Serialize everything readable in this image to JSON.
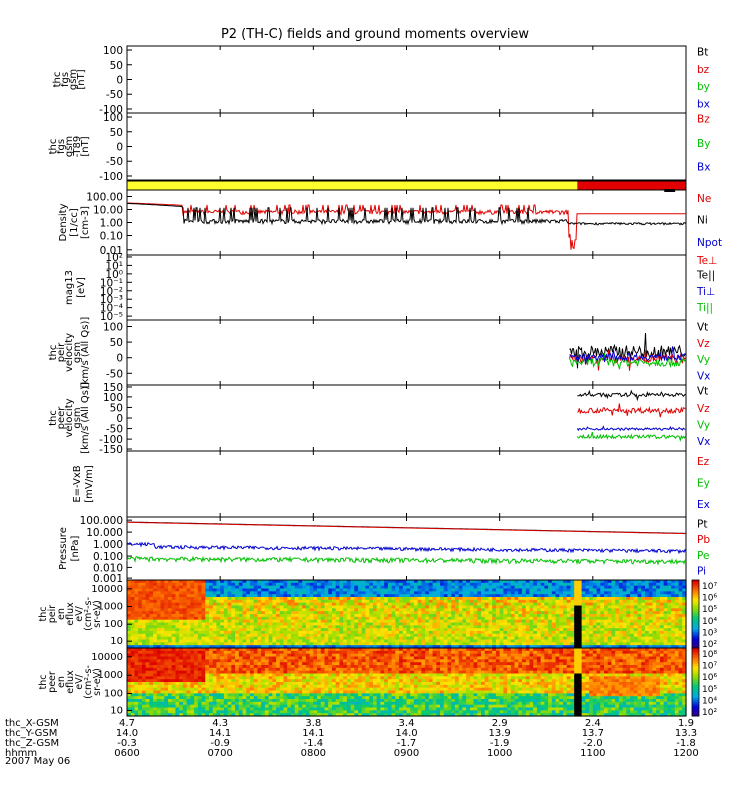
{
  "title": "P2 (TH-C) fields and ground moments overview",
  "colors": {
    "black": "#000000",
    "red": "#e00000",
    "green": "#00c000",
    "blue": "#0000d0",
    "yellow": "#ffff30",
    "axis": "#000000"
  },
  "time_axis": {
    "ticks": [
      "0600",
      "0700",
      "0800",
      "0900",
      "1000",
      "1100",
      "1200"
    ],
    "rows": [
      {
        "label": "thc_X-GSM",
        "values": [
          "4.7",
          "4.3",
          "3.8",
          "3.4",
          "2.9",
          "2.4",
          "1.9"
        ]
      },
      {
        "label": "thc_Y-GSM",
        "values": [
          "14.0",
          "14.1",
          "14.1",
          "14.0",
          "13.9",
          "13.7",
          "13.3"
        ]
      },
      {
        "label": "thc_Z-GSM",
        "values": [
          "-0.3",
          "-0.9",
          "-1.4",
          "-1.7",
          "-1.9",
          "-2.0",
          "-1.8"
        ]
      },
      {
        "label": "hhmm",
        "values": [
          "0600",
          "0700",
          "0800",
          "0900",
          "1000",
          "1100",
          "1200"
        ]
      }
    ],
    "date": "2007 May 06"
  },
  "chart_data": [
    {
      "id": "fgs_gsm",
      "type": "line",
      "ylabel": [
        "thc",
        "fgs",
        "gsm",
        "[nT]"
      ],
      "yticks": [
        "100",
        "50",
        "0",
        "-50",
        "-100"
      ],
      "ylim": [
        -100,
        100
      ],
      "legend": [
        {
          "text": "Bt",
          "color": "black"
        },
        {
          "text": "bz",
          "color": "red"
        },
        {
          "text": "by",
          "color": "green"
        },
        {
          "text": "bx",
          "color": "blue"
        }
      ],
      "series": []
    },
    {
      "id": "fgs_gsm_t89",
      "type": "line",
      "ylabel": [
        "thc",
        "fgs",
        "gsm",
        "-T89",
        "[nT]"
      ],
      "yticks": [
        "100",
        "50",
        "0",
        "-50",
        "-100"
      ],
      "ylim": [
        -100,
        100
      ],
      "legend": [
        {
          "text": "Bz",
          "color": "red"
        },
        {
          "text": "By",
          "color": "green"
        },
        {
          "text": "Bx",
          "color": "blue"
        }
      ],
      "series": []
    },
    {
      "id": "mode_bar",
      "type": "bar",
      "segments": [
        {
          "from": "0600",
          "to": "1050",
          "color": "yellow"
        },
        {
          "from": "1050",
          "to": "1200",
          "color": "red"
        }
      ],
      "marks": [
        {
          "from": "1146",
          "to": "1153",
          "color": "black"
        }
      ]
    },
    {
      "id": "density",
      "type": "line",
      "scale": "log",
      "ylabel": [
        "Density",
        "[1/cc]",
        "[cm-3]"
      ],
      "yticks": [
        "100.00",
        "10.00",
        "1.00",
        "0.10",
        "0.01"
      ],
      "ylim": [
        0.01,
        100
      ],
      "legend": [
        {
          "text": "Ne",
          "color": "red"
        },
        {
          "text": "Ni",
          "color": "black"
        },
        {
          "text": "Npot",
          "color": "blue"
        }
      ],
      "series": [
        {
          "name": "Ne",
          "color": "red",
          "base": 4.5,
          "start": 16,
          "spikes": true
        },
        {
          "name": "Ni",
          "color": "black",
          "base": 1.2,
          "start": 15,
          "spikes": true
        }
      ]
    },
    {
      "id": "temperature",
      "type": "line",
      "scale": "log",
      "ylabel": [
        "mag13",
        "[eV]"
      ],
      "yticks": [
        "10²",
        "10¹",
        "10⁰",
        "10⁻¹",
        "10⁻²",
        "10⁻³",
        "10⁻⁴",
        "10⁻⁵"
      ],
      "legend": [
        {
          "text": "Te⊥",
          "color": "red"
        },
        {
          "text": "Te||",
          "color": "black"
        },
        {
          "text": "Ti⊥",
          "color": "blue"
        },
        {
          "text": "Ti||",
          "color": "green"
        }
      ],
      "series": []
    },
    {
      "id": "peir_velocity",
      "type": "line",
      "ylabel": [
        "thc",
        "peir",
        "velocity",
        "gsm",
        "[km/s (All Qs)]"
      ],
      "yticks": [
        "100",
        "50",
        "0",
        "-50"
      ],
      "ylim": [
        -75,
        110
      ],
      "legend": [
        {
          "text": "Vt",
          "color": "black"
        },
        {
          "text": "Vz",
          "color": "red"
        },
        {
          "text": "Vy",
          "color": "green"
        },
        {
          "text": "Vx",
          "color": "blue"
        }
      ],
      "series": [
        {
          "name": "Vt",
          "color": "black",
          "start_hhmm": "1045",
          "base": 20,
          "noise": 18
        },
        {
          "name": "Vz",
          "color": "red",
          "start_hhmm": "1045",
          "base": 0,
          "noise": 12
        },
        {
          "name": "Vy",
          "color": "green",
          "start_hhmm": "1045",
          "base": -10,
          "noise": 12
        },
        {
          "name": "Vx",
          "color": "blue",
          "start_hhmm": "1045",
          "base": 5,
          "noise": 10
        }
      ]
    },
    {
      "id": "peer_velocity",
      "type": "line",
      "ylabel": [
        "thc",
        "peer",
        "velocity",
        "gsm",
        "[km/s (All Qs)]"
      ],
      "yticks": [
        "150",
        "100",
        "50",
        "0",
        "-50",
        "-100",
        "-150"
      ],
      "ylim": [
        -150,
        150
      ],
      "legend": [
        {
          "text": "Vt",
          "color": "black"
        },
        {
          "text": "Vz",
          "color": "red"
        },
        {
          "text": "Vy",
          "color": "green"
        },
        {
          "text": "Vx",
          "color": "blue"
        }
      ],
      "series": [
        {
          "name": "Vt",
          "color": "black",
          "start_hhmm": "1050",
          "base": 105,
          "noise": 8
        },
        {
          "name": "Vz",
          "color": "red",
          "start_hhmm": "1050",
          "base": 35,
          "noise": 12
        },
        {
          "name": "Vx",
          "color": "blue",
          "start_hhmm": "1050",
          "base": -50,
          "noise": 5
        },
        {
          "name": "Vy",
          "color": "green",
          "start_hhmm": "1050",
          "base": -85,
          "noise": 8
        }
      ]
    },
    {
      "id": "efield",
      "type": "line",
      "ylabel": [
        "E=-VxB",
        "[mV/m]"
      ],
      "legend": [
        {
          "text": "Ez",
          "color": "red"
        },
        {
          "text": "Ey",
          "color": "green"
        },
        {
          "text": "Ex",
          "color": "blue"
        }
      ],
      "series": []
    },
    {
      "id": "pressure",
      "type": "line",
      "scale": "log",
      "ylabel": [
        "Pressure",
        "[nPa]"
      ],
      "yticks": [
        "100.000",
        "10.000",
        "1.000",
        "0.100",
        "0.010",
        "0.001"
      ],
      "ylim": [
        0.001,
        100
      ],
      "legend": [
        {
          "text": "Pt",
          "color": "black"
        },
        {
          "text": "Pb",
          "color": "red"
        },
        {
          "text": "Pe",
          "color": "green"
        },
        {
          "text": "Pi",
          "color": "blue"
        }
      ],
      "series": [
        {
          "name": "Pt",
          "color": "black",
          "from": 40,
          "to": 5
        },
        {
          "name": "Pb",
          "color": "red",
          "from": 38,
          "to": 4.8
        },
        {
          "name": "Pi",
          "color": "blue",
          "from": 0.45,
          "to": 0.2
        },
        {
          "name": "Pe",
          "color": "green",
          "from": 0.05,
          "to": 0.03
        }
      ]
    },
    {
      "id": "peir_spec",
      "type": "heatmap",
      "ylabel": [
        "thc",
        "peir",
        "en",
        "eflux",
        "eV/",
        "(cm²-s-",
        "sr-eV)"
      ],
      "yticks": [
        "10000",
        "1000",
        "100",
        "10"
      ],
      "ylim": [
        5,
        25000
      ],
      "colorbar": [
        "10⁷",
        "10⁶",
        "10⁵",
        "10⁴",
        "10³",
        "10²"
      ]
    },
    {
      "id": "peer_spec",
      "type": "heatmap",
      "ylabel": [
        "thc",
        "peer",
        "en",
        "eflux",
        "eV/",
        "(cm²-s-",
        "sr-eV)"
      ],
      "yticks": [
        "10000",
        "1000",
        "100",
        "10"
      ],
      "ylim": [
        5,
        25000
      ],
      "colorbar": [
        "10⁸",
        "10⁷",
        "10⁶",
        "10⁵",
        "10⁴",
        "10²"
      ]
    }
  ]
}
